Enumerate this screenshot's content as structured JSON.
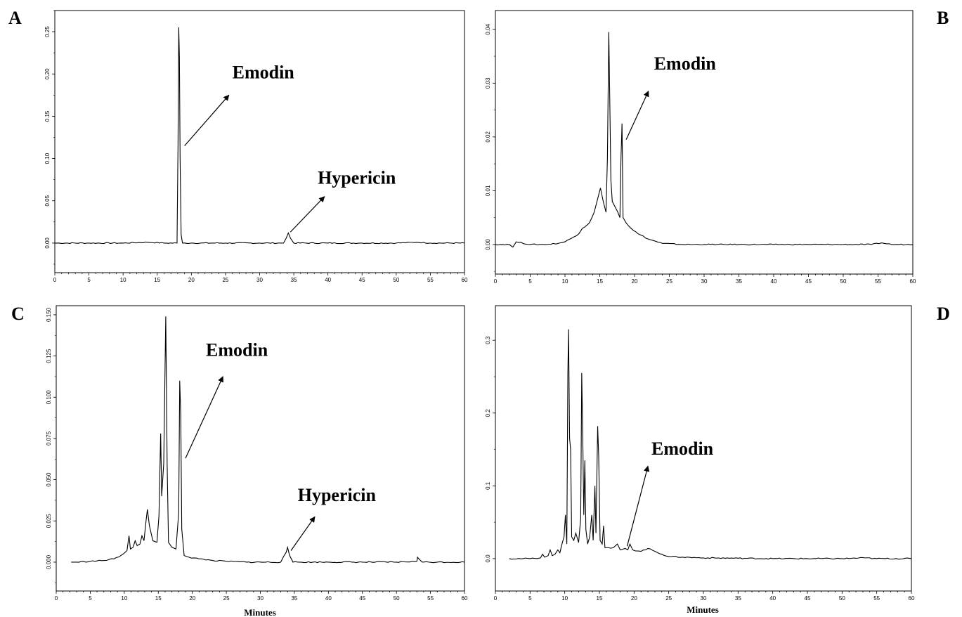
{
  "figure": {
    "panel_letters": [
      "A",
      "B",
      "C",
      "D"
    ],
    "x_axis_label": "Minutes"
  },
  "chart_data": [
    {
      "panel": "A",
      "type": "line",
      "xlim": [
        0,
        60
      ],
      "ylim": [
        -0.035,
        0.275
      ],
      "xticks": [
        0,
        5,
        10,
        15,
        20,
        25,
        30,
        35,
        40,
        45,
        50,
        55,
        60
      ],
      "yticks": [
        0.0,
        0.05,
        0.1,
        0.15,
        0.2,
        0.25
      ],
      "ytick_labels": [
        "0.00",
        "0.05",
        "0.10",
        "0.15",
        "0.20",
        "0.25"
      ],
      "xlabel": "",
      "series": [
        {
          "points": [
            [
              0,
              0
            ],
            [
              5,
              0
            ],
            [
              10,
              0
            ],
            [
              13.6,
              0.001
            ],
            [
              16,
              0
            ],
            [
              17.9,
              0
            ],
            [
              18.05,
              0.12
            ],
            [
              18.15,
              0.255
            ],
            [
              18.25,
              0.22
            ],
            [
              18.35,
              0.1
            ],
            [
              18.5,
              0.01
            ],
            [
              18.7,
              0
            ],
            [
              20,
              0
            ],
            [
              25,
              0
            ],
            [
              30,
              0
            ],
            [
              33.5,
              0
            ],
            [
              33.9,
              0.006
            ],
            [
              34.2,
              0.012
            ],
            [
              34.5,
              0.006
            ],
            [
              35,
              0
            ],
            [
              40,
              0
            ],
            [
              45,
              0
            ],
            [
              50,
              0
            ],
            [
              53,
              0.001
            ],
            [
              55,
              0
            ],
            [
              60,
              0
            ]
          ]
        }
      ],
      "annotations": [
        {
          "text": "Emodin",
          "arrow_from": [
            19,
            0.115
          ],
          "arrow_to": [
            25.5,
            0.175
          ],
          "label_at": [
            26,
            0.195
          ]
        },
        {
          "text": "Hypericin",
          "arrow_from": [
            34.5,
            0.013
          ],
          "arrow_to": [
            39.5,
            0.055
          ],
          "label_at": [
            38.5,
            0.07
          ]
        }
      ]
    },
    {
      "panel": "B",
      "type": "line",
      "xlim": [
        0,
        60
      ],
      "ylim": [
        -0.0055,
        0.0435
      ],
      "xticks": [
        0,
        5,
        10,
        15,
        20,
        25,
        30,
        35,
        40,
        45,
        50,
        55,
        60
      ],
      "yticks": [
        0.0,
        0.01,
        0.02,
        0.03,
        0.04
      ],
      "ytick_labels": [
        "0.00",
        "0.01",
        "0.02",
        "0.03",
        "0.04"
      ],
      "xlabel": "",
      "series": [
        {
          "points": [
            [
              0,
              0
            ],
            [
              2,
              0
            ],
            [
              2.5,
              -0.0005
            ],
            [
              3,
              0.0005
            ],
            [
              5,
              0
            ],
            [
              7,
              0
            ],
            [
              9,
              0.0002
            ],
            [
              10,
              0.0005
            ],
            [
              11,
              0.0012
            ],
            [
              12,
              0.002
            ],
            [
              12.5,
              0.003
            ],
            [
              13.5,
              0.004
            ],
            [
              14.2,
              0.006
            ],
            [
              14.8,
              0.009
            ],
            [
              15.1,
              0.0105
            ],
            [
              15.5,
              0.008
            ],
            [
              15.9,
              0.006
            ],
            [
              16.1,
              0.016
            ],
            [
              16.3,
              0.0395
            ],
            [
              16.45,
              0.026
            ],
            [
              16.6,
              0.012
            ],
            [
              16.8,
              0.008
            ],
            [
              17.2,
              0.007
            ],
            [
              17.6,
              0.006
            ],
            [
              17.9,
              0.005
            ],
            [
              18.05,
              0.016
            ],
            [
              18.2,
              0.0225
            ],
            [
              18.35,
              0.005
            ],
            [
              18.8,
              0.004
            ],
            [
              19.5,
              0.003
            ],
            [
              20.5,
              0.002
            ],
            [
              22,
              0.001
            ],
            [
              24,
              0.0002
            ],
            [
              27,
              0
            ],
            [
              30,
              0
            ],
            [
              35,
              0
            ],
            [
              40,
              0
            ],
            [
              45,
              0
            ],
            [
              50,
              0
            ],
            [
              54,
              0
            ],
            [
              55.5,
              0.0003
            ],
            [
              57,
              0
            ],
            [
              60,
              0
            ]
          ]
        }
      ],
      "annotations": [
        {
          "text": "Emodin",
          "arrow_from": [
            18.8,
            0.0195
          ],
          "arrow_to": [
            22,
            0.0285
          ],
          "label_at": [
            22.8,
            0.0325
          ]
        }
      ]
    },
    {
      "panel": "C",
      "type": "line",
      "xlim": [
        0,
        60
      ],
      "ylim": [
        -0.0175,
        0.1555
      ],
      "xticks": [
        0,
        5,
        10,
        15,
        20,
        25,
        30,
        35,
        40,
        45,
        50,
        55,
        60
      ],
      "yticks": [
        0.0,
        0.025,
        0.05,
        0.075,
        0.1,
        0.125,
        0.15
      ],
      "ytick_labels": [
        "0.000",
        "0.025",
        "0.050",
        "0.075",
        "0.100",
        "0.125",
        "0.150"
      ],
      "xlabel": "Minutes",
      "series": [
        {
          "points": [
            [
              2.2,
              0
            ],
            [
              3,
              0
            ],
            [
              5,
              0.0005
            ],
            [
              7,
              0.001
            ],
            [
              8.5,
              0.002
            ],
            [
              9.5,
              0.004
            ],
            [
              10.4,
              0.007
            ],
            [
              10.7,
              0.016
            ],
            [
              10.9,
              0.008
            ],
            [
              11.3,
              0.009
            ],
            [
              11.6,
              0.013
            ],
            [
              11.9,
              0.01
            ],
            [
              12.3,
              0.011
            ],
            [
              12.6,
              0.016
            ],
            [
              12.9,
              0.013
            ],
            [
              13.2,
              0.025
            ],
            [
              13.4,
              0.032
            ],
            [
              13.7,
              0.022
            ],
            [
              14.2,
              0.013
            ],
            [
              14.8,
              0.012
            ],
            [
              15.1,
              0.028
            ],
            [
              15.35,
              0.078
            ],
            [
              15.5,
              0.04
            ],
            [
              15.8,
              0.06
            ],
            [
              16.1,
              0.149
            ],
            [
              16.3,
              0.06
            ],
            [
              16.5,
              0.012
            ],
            [
              17,
              0.009
            ],
            [
              17.6,
              0.008
            ],
            [
              18,
              0.03
            ],
            [
              18.15,
              0.11
            ],
            [
              18.3,
              0.09
            ],
            [
              18.45,
              0.02
            ],
            [
              18.8,
              0.004
            ],
            [
              19.5,
              0.003
            ],
            [
              21,
              0.002
            ],
            [
              23,
              0.001
            ],
            [
              25,
              0.0005
            ],
            [
              28,
              0
            ],
            [
              33,
              0
            ],
            [
              33.8,
              0.006
            ],
            [
              34,
              0.009
            ],
            [
              34.3,
              0.004
            ],
            [
              34.8,
              0
            ],
            [
              40,
              0
            ],
            [
              45,
              0
            ],
            [
              50,
              0
            ],
            [
              53,
              0.0005
            ],
            [
              53.1,
              0.003
            ],
            [
              53.4,
              0.0015
            ],
            [
              53.8,
              0
            ],
            [
              56,
              0
            ],
            [
              60,
              0
            ]
          ]
        }
      ],
      "annotations": [
        {
          "text": "Emodin",
          "arrow_from": [
            19,
            0.063
          ],
          "arrow_to": [
            24.5,
            0.1125
          ],
          "label_at": [
            22,
            0.125
          ]
        },
        {
          "text": "Hypericin",
          "arrow_from": [
            34.5,
            0.007
          ],
          "arrow_to": [
            38,
            0.0275
          ],
          "label_at": [
            35.5,
            0.037
          ]
        }
      ]
    },
    {
      "panel": "D",
      "type": "line",
      "xlim": [
        0,
        60
      ],
      "ylim": [
        -0.0445,
        0.3475
      ],
      "xticks": [
        0,
        5,
        10,
        15,
        20,
        25,
        30,
        35,
        40,
        45,
        50,
        55,
        60
      ],
      "yticks": [
        0.0,
        0.1,
        0.2,
        0.3
      ],
      "ytick_labels": [
        "0.0",
        "0.1",
        "0.2",
        "0.3"
      ],
      "xlabel": "Minutes",
      "series": [
        {
          "points": [
            [
              2,
              0
            ],
            [
              4,
              0
            ],
            [
              6,
              0
            ],
            [
              6.5,
              0.001
            ],
            [
              6.8,
              0.006
            ],
            [
              7.1,
              0.002
            ],
            [
              7.6,
              0.004
            ],
            [
              7.9,
              0.012
            ],
            [
              8.2,
              0.004
            ],
            [
              8.6,
              0.006
            ],
            [
              9,
              0.012
            ],
            [
              9.3,
              0.008
            ],
            [
              9.6,
              0.02
            ],
            [
              9.9,
              0.03
            ],
            [
              10.1,
              0.06
            ],
            [
              10.3,
              0.02
            ],
            [
              10.45,
              0.255
            ],
            [
              10.55,
              0.315
            ],
            [
              10.7,
              0.165
            ],
            [
              10.85,
              0.15
            ],
            [
              11,
              0.03
            ],
            [
              11.3,
              0.025
            ],
            [
              11.6,
              0.035
            ],
            [
              12,
              0.022
            ],
            [
              12.3,
              0.055
            ],
            [
              12.45,
              0.255
            ],
            [
              12.6,
              0.165
            ],
            [
              12.75,
              0.06
            ],
            [
              12.9,
              0.135
            ],
            [
              13.05,
              0.04
            ],
            [
              13.3,
              0.02
            ],
            [
              13.6,
              0.03
            ],
            [
              13.9,
              0.06
            ],
            [
              14.1,
              0.025
            ],
            [
              14.35,
              0.1
            ],
            [
              14.5,
              0.035
            ],
            [
              14.75,
              0.182
            ],
            [
              14.9,
              0.14
            ],
            [
              15.1,
              0.025
            ],
            [
              15.4,
              0.02
            ],
            [
              15.6,
              0.045
            ],
            [
              15.8,
              0.015
            ],
            [
              16.3,
              0.015
            ],
            [
              17,
              0.015
            ],
            [
              17.6,
              0.02
            ],
            [
              18,
              0.012
            ],
            [
              18.7,
              0.014
            ],
            [
              19.1,
              0.012
            ],
            [
              19.4,
              0.02
            ],
            [
              19.8,
              0.012
            ],
            [
              21,
              0.01
            ],
            [
              22,
              0.014
            ],
            [
              23,
              0.01
            ],
            [
              24,
              0.006
            ],
            [
              25,
              0.003
            ],
            [
              27,
              0.002
            ],
            [
              30,
              0.001
            ],
            [
              35,
              0.0005
            ],
            [
              40,
              0
            ],
            [
              50,
              0
            ],
            [
              53.3,
              0.001
            ],
            [
              55,
              0
            ],
            [
              60,
              0
            ]
          ]
        }
      ],
      "annotations": [
        {
          "text": "Emodin",
          "arrow_from": [
            19,
            0.017
          ],
          "arrow_to": [
            22,
            0.127
          ],
          "label_at": [
            22.5,
            0.143
          ]
        }
      ]
    }
  ]
}
